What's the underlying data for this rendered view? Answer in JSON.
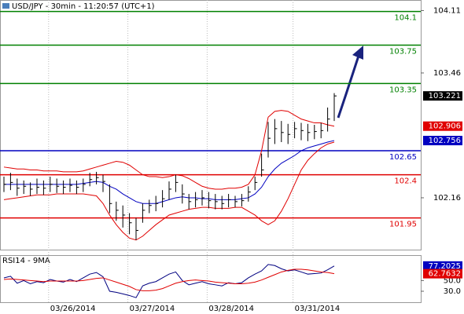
{
  "chart_data": {
    "type": "ohlc",
    "title": "USD/JPY - 30min - 11:20:57 (UTC+1)",
    "x": [
      null,
      null,
      null,
      null,
      null,
      null,
      null,
      "03/26/2014",
      null,
      null,
      null,
      null,
      null,
      null,
      null,
      null,
      null,
      null,
      null,
      "03/27/2014",
      null,
      null,
      null,
      null,
      null,
      null,
      null,
      null,
      null,
      null,
      null,
      "03/28/2014",
      null,
      null,
      null,
      null,
      null,
      null,
      null,
      null,
      null,
      null,
      null,
      null,
      "03/31/2014",
      null,
      null,
      null,
      null,
      null,
      null
    ],
    "high": [
      102.38,
      102.42,
      102.36,
      102.34,
      102.32,
      102.36,
      102.34,
      102.38,
      102.36,
      102.34,
      102.36,
      102.34,
      102.36,
      102.42,
      102.43,
      102.4,
      102.3,
      102.12,
      102.08,
      102.0,
      101.95,
      102.1,
      102.14,
      102.18,
      102.24,
      102.33,
      102.4,
      102.3,
      102.2,
      102.22,
      102.24,
      102.22,
      102.2,
      102.18,
      102.2,
      102.18,
      102.2,
      102.28,
      102.38,
      102.62,
      102.95,
      102.98,
      102.96,
      102.93,
      102.95,
      102.94,
      102.93,
      102.92,
      102.94,
      103.1,
      103.25
    ],
    "low": [
      102.22,
      102.24,
      102.18,
      102.2,
      102.18,
      102.2,
      102.19,
      102.22,
      102.21,
      102.2,
      102.22,
      102.2,
      102.22,
      102.28,
      102.3,
      102.22,
      102.0,
      101.92,
      101.85,
      101.78,
      101.72,
      101.9,
      102.0,
      102.02,
      102.06,
      102.14,
      102.22,
      102.1,
      102.04,
      102.06,
      102.08,
      102.05,
      102.04,
      102.04,
      102.06,
      102.06,
      102.07,
      102.12,
      102.24,
      102.38,
      102.58,
      102.72,
      102.74,
      102.72,
      102.78,
      102.76,
      102.75,
      102.77,
      102.78,
      102.85,
      102.96
    ],
    "close": [
      102.3,
      102.32,
      102.26,
      102.28,
      102.25,
      102.27,
      102.26,
      102.3,
      102.28,
      102.27,
      102.29,
      102.27,
      102.3,
      102.35,
      102.37,
      102.33,
      102.1,
      102.03,
      101.98,
      101.9,
      101.82,
      102.03,
      102.08,
      102.1,
      102.15,
      102.25,
      102.32,
      102.2,
      102.12,
      102.14,
      102.16,
      102.13,
      102.12,
      102.1,
      102.14,
      102.12,
      102.13,
      102.22,
      102.32,
      102.45,
      102.78,
      102.88,
      102.84,
      102.82,
      102.88,
      102.86,
      102.84,
      102.85,
      102.86,
      102.98,
      103.221
    ],
    "bands": [
      {
        "color": "#e00000",
        "values": [
          102.48,
          102.47,
          102.46,
          102.46,
          102.45,
          102.45,
          102.44,
          102.44,
          102.44,
          102.43,
          102.43,
          102.43,
          102.44,
          102.46,
          102.48,
          102.5,
          102.52,
          102.54,
          102.53,
          102.5,
          102.45,
          102.4,
          102.38,
          102.38,
          102.37,
          102.38,
          102.4,
          102.39,
          102.36,
          102.32,
          102.28,
          102.26,
          102.25,
          102.25,
          102.26,
          102.26,
          102.27,
          102.3,
          102.4,
          102.65,
          103.0,
          103.06,
          103.07,
          103.06,
          103.02,
          102.98,
          102.96,
          102.94,
          102.94,
          102.92,
          102.906
        ]
      },
      {
        "color": "#e00000",
        "values": [
          102.14,
          102.15,
          102.16,
          102.17,
          102.18,
          102.19,
          102.19,
          102.19,
          102.2,
          102.2,
          102.2,
          102.2,
          102.2,
          102.19,
          102.18,
          102.1,
          101.98,
          101.88,
          101.8,
          101.74,
          101.72,
          101.76,
          101.82,
          101.88,
          101.93,
          101.98,
          102.0,
          102.02,
          102.04,
          102.05,
          102.06,
          102.06,
          102.05,
          102.05,
          102.05,
          102.06,
          102.06,
          102.02,
          101.98,
          101.92,
          101.88,
          101.92,
          102.02,
          102.15,
          102.3,
          102.45,
          102.55,
          102.62,
          102.68,
          102.72,
          102.74
        ]
      },
      {
        "color": "#0000c0",
        "values": [
          102.3,
          102.3,
          102.3,
          102.3,
          102.3,
          102.3,
          102.3,
          102.3,
          102.3,
          102.3,
          102.3,
          102.3,
          102.31,
          102.32,
          102.33,
          102.32,
          102.28,
          102.25,
          102.2,
          102.16,
          102.12,
          102.1,
          102.1,
          102.1,
          102.12,
          102.14,
          102.16,
          102.17,
          102.16,
          102.16,
          102.15,
          102.15,
          102.14,
          102.14,
          102.14,
          102.14,
          102.15,
          102.16,
          102.2,
          102.27,
          102.38,
          102.46,
          102.52,
          102.56,
          102.6,
          102.65,
          102.68,
          102.7,
          102.72,
          102.74,
          102.756
        ]
      }
    ],
    "ylim": [
      101.62,
      104.22
    ],
    "yticks": [
      102.16,
      103.46,
      104.11
    ],
    "levels": [
      {
        "value": 104.1,
        "color": "#008000"
      },
      {
        "value": 103.75,
        "color": "#008000"
      },
      {
        "value": 103.35,
        "color": "#008000"
      },
      {
        "value": 102.65,
        "color": "#0000c0"
      },
      {
        "value": 102.4,
        "color": "#e00000"
      },
      {
        "value": 101.95,
        "color": "#e00000"
      }
    ],
    "last_labels": [
      {
        "value": 103.221,
        "color": "#000000"
      },
      {
        "value": 102.906,
        "color": "#e00000"
      },
      {
        "value": 102.756,
        "color": "#0000c0"
      }
    ],
    "rsi": {
      "title": "RSI14 - 9MA",
      "series": [
        {
          "color": "#000080",
          "values": [
            55,
            58,
            45,
            50,
            44,
            48,
            46,
            52,
            49,
            47,
            52,
            48,
            55,
            62,
            65,
            57,
            30,
            28,
            25,
            22,
            18,
            40,
            45,
            48,
            55,
            62,
            66,
            50,
            42,
            45,
            48,
            44,
            42,
            40,
            46,
            44,
            46,
            55,
            62,
            68,
            80,
            78,
            72,
            68,
            70,
            66,
            62,
            63,
            64,
            70,
            77.2025
          ]
        },
        {
          "color": "#e00000",
          "values": [
            52,
            53,
            52,
            51,
            50,
            49,
            48,
            49,
            49,
            49,
            49,
            49,
            50,
            52,
            54,
            55,
            51,
            47,
            43,
            39,
            33,
            31,
            31,
            32,
            35,
            40,
            45,
            48,
            50,
            51,
            50,
            49,
            47,
            46,
            45,
            44,
            44,
            45,
            47,
            51,
            56,
            61,
            66,
            69,
            71,
            71,
            70,
            68,
            66,
            65,
            62.7632
          ]
        }
      ],
      "ylim": [
        8,
        96
      ],
      "yticks": [
        {
          "value": 30,
          "label": "30.0"
        },
        {
          "value": 50,
          "label": "50.0"
        }
      ],
      "last_labels": [
        {
          "value": 77.2025,
          "color": "#0000c0"
        },
        {
          "value": 62.7632,
          "color": "#e00000"
        }
      ]
    }
  }
}
